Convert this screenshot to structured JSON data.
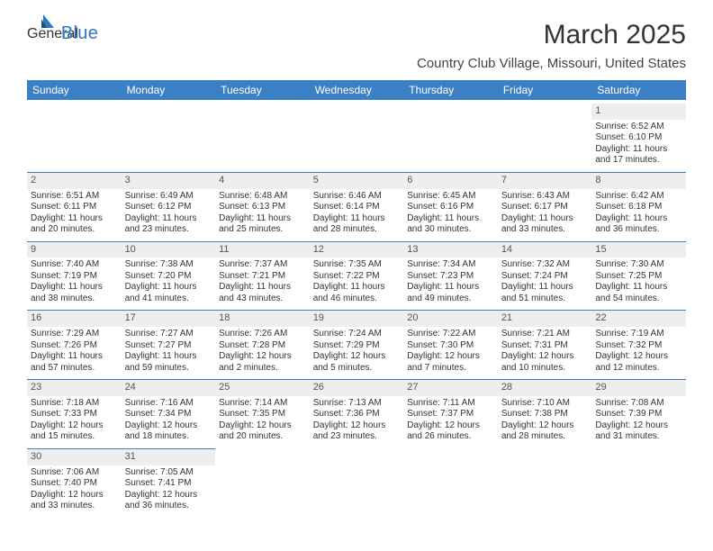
{
  "logo": {
    "text1": "General",
    "text2": "Blue"
  },
  "title": "March 2025",
  "subtitle": "Country Club Village, Missouri, United States",
  "colors": {
    "header_bg": "#3b80c4",
    "header_text": "#ffffff",
    "daynum_bg": "#eeeeee",
    "divider": "#3b80c4",
    "logo_general": "#5a6b78",
    "logo_blue": "#2f78c0"
  },
  "weekdays": [
    "Sunday",
    "Monday",
    "Tuesday",
    "Wednesday",
    "Thursday",
    "Friday",
    "Saturday"
  ],
  "weeks": [
    [
      null,
      null,
      null,
      null,
      null,
      null,
      {
        "n": "1",
        "sunrise": "Sunrise: 6:52 AM",
        "sunset": "Sunset: 6:10 PM",
        "day1": "Daylight: 11 hours",
        "day2": "and 17 minutes."
      }
    ],
    [
      {
        "n": "2",
        "sunrise": "Sunrise: 6:51 AM",
        "sunset": "Sunset: 6:11 PM",
        "day1": "Daylight: 11 hours",
        "day2": "and 20 minutes."
      },
      {
        "n": "3",
        "sunrise": "Sunrise: 6:49 AM",
        "sunset": "Sunset: 6:12 PM",
        "day1": "Daylight: 11 hours",
        "day2": "and 23 minutes."
      },
      {
        "n": "4",
        "sunrise": "Sunrise: 6:48 AM",
        "sunset": "Sunset: 6:13 PM",
        "day1": "Daylight: 11 hours",
        "day2": "and 25 minutes."
      },
      {
        "n": "5",
        "sunrise": "Sunrise: 6:46 AM",
        "sunset": "Sunset: 6:14 PM",
        "day1": "Daylight: 11 hours",
        "day2": "and 28 minutes."
      },
      {
        "n": "6",
        "sunrise": "Sunrise: 6:45 AM",
        "sunset": "Sunset: 6:16 PM",
        "day1": "Daylight: 11 hours",
        "day2": "and 30 minutes."
      },
      {
        "n": "7",
        "sunrise": "Sunrise: 6:43 AM",
        "sunset": "Sunset: 6:17 PM",
        "day1": "Daylight: 11 hours",
        "day2": "and 33 minutes."
      },
      {
        "n": "8",
        "sunrise": "Sunrise: 6:42 AM",
        "sunset": "Sunset: 6:18 PM",
        "day1": "Daylight: 11 hours",
        "day2": "and 36 minutes."
      }
    ],
    [
      {
        "n": "9",
        "sunrise": "Sunrise: 7:40 AM",
        "sunset": "Sunset: 7:19 PM",
        "day1": "Daylight: 11 hours",
        "day2": "and 38 minutes."
      },
      {
        "n": "10",
        "sunrise": "Sunrise: 7:38 AM",
        "sunset": "Sunset: 7:20 PM",
        "day1": "Daylight: 11 hours",
        "day2": "and 41 minutes."
      },
      {
        "n": "11",
        "sunrise": "Sunrise: 7:37 AM",
        "sunset": "Sunset: 7:21 PM",
        "day1": "Daylight: 11 hours",
        "day2": "and 43 minutes."
      },
      {
        "n": "12",
        "sunrise": "Sunrise: 7:35 AM",
        "sunset": "Sunset: 7:22 PM",
        "day1": "Daylight: 11 hours",
        "day2": "and 46 minutes."
      },
      {
        "n": "13",
        "sunrise": "Sunrise: 7:34 AM",
        "sunset": "Sunset: 7:23 PM",
        "day1": "Daylight: 11 hours",
        "day2": "and 49 minutes."
      },
      {
        "n": "14",
        "sunrise": "Sunrise: 7:32 AM",
        "sunset": "Sunset: 7:24 PM",
        "day1": "Daylight: 11 hours",
        "day2": "and 51 minutes."
      },
      {
        "n": "15",
        "sunrise": "Sunrise: 7:30 AM",
        "sunset": "Sunset: 7:25 PM",
        "day1": "Daylight: 11 hours",
        "day2": "and 54 minutes."
      }
    ],
    [
      {
        "n": "16",
        "sunrise": "Sunrise: 7:29 AM",
        "sunset": "Sunset: 7:26 PM",
        "day1": "Daylight: 11 hours",
        "day2": "and 57 minutes."
      },
      {
        "n": "17",
        "sunrise": "Sunrise: 7:27 AM",
        "sunset": "Sunset: 7:27 PM",
        "day1": "Daylight: 11 hours",
        "day2": "and 59 minutes."
      },
      {
        "n": "18",
        "sunrise": "Sunrise: 7:26 AM",
        "sunset": "Sunset: 7:28 PM",
        "day1": "Daylight: 12 hours",
        "day2": "and 2 minutes."
      },
      {
        "n": "19",
        "sunrise": "Sunrise: 7:24 AM",
        "sunset": "Sunset: 7:29 PM",
        "day1": "Daylight: 12 hours",
        "day2": "and 5 minutes."
      },
      {
        "n": "20",
        "sunrise": "Sunrise: 7:22 AM",
        "sunset": "Sunset: 7:30 PM",
        "day1": "Daylight: 12 hours",
        "day2": "and 7 minutes."
      },
      {
        "n": "21",
        "sunrise": "Sunrise: 7:21 AM",
        "sunset": "Sunset: 7:31 PM",
        "day1": "Daylight: 12 hours",
        "day2": "and 10 minutes."
      },
      {
        "n": "22",
        "sunrise": "Sunrise: 7:19 AM",
        "sunset": "Sunset: 7:32 PM",
        "day1": "Daylight: 12 hours",
        "day2": "and 12 minutes."
      }
    ],
    [
      {
        "n": "23",
        "sunrise": "Sunrise: 7:18 AM",
        "sunset": "Sunset: 7:33 PM",
        "day1": "Daylight: 12 hours",
        "day2": "and 15 minutes."
      },
      {
        "n": "24",
        "sunrise": "Sunrise: 7:16 AM",
        "sunset": "Sunset: 7:34 PM",
        "day1": "Daylight: 12 hours",
        "day2": "and 18 minutes."
      },
      {
        "n": "25",
        "sunrise": "Sunrise: 7:14 AM",
        "sunset": "Sunset: 7:35 PM",
        "day1": "Daylight: 12 hours",
        "day2": "and 20 minutes."
      },
      {
        "n": "26",
        "sunrise": "Sunrise: 7:13 AM",
        "sunset": "Sunset: 7:36 PM",
        "day1": "Daylight: 12 hours",
        "day2": "and 23 minutes."
      },
      {
        "n": "27",
        "sunrise": "Sunrise: 7:11 AM",
        "sunset": "Sunset: 7:37 PM",
        "day1": "Daylight: 12 hours",
        "day2": "and 26 minutes."
      },
      {
        "n": "28",
        "sunrise": "Sunrise: 7:10 AM",
        "sunset": "Sunset: 7:38 PM",
        "day1": "Daylight: 12 hours",
        "day2": "and 28 minutes."
      },
      {
        "n": "29",
        "sunrise": "Sunrise: 7:08 AM",
        "sunset": "Sunset: 7:39 PM",
        "day1": "Daylight: 12 hours",
        "day2": "and 31 minutes."
      }
    ],
    [
      {
        "n": "30",
        "sunrise": "Sunrise: 7:06 AM",
        "sunset": "Sunset: 7:40 PM",
        "day1": "Daylight: 12 hours",
        "day2": "and 33 minutes."
      },
      {
        "n": "31",
        "sunrise": "Sunrise: 7:05 AM",
        "sunset": "Sunset: 7:41 PM",
        "day1": "Daylight: 12 hours",
        "day2": "and 36 minutes."
      },
      null,
      null,
      null,
      null,
      null
    ]
  ]
}
